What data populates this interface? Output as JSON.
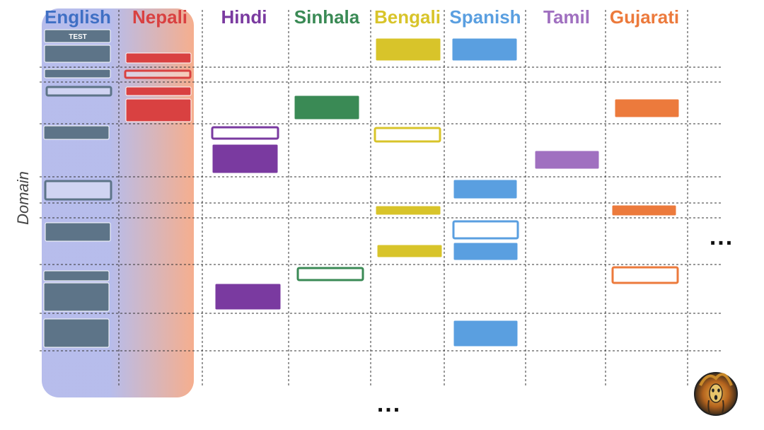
{
  "languages": [
    {
      "id": "english",
      "label": "English",
      "color": "#3f6fc4"
    },
    {
      "id": "nepali",
      "label": "Nepali",
      "color": "#d94141"
    },
    {
      "id": "hindi",
      "label": "Hindi",
      "color": "#7a3aa0"
    },
    {
      "id": "sinhala",
      "label": "Sinhala",
      "color": "#3a8a55"
    },
    {
      "id": "bengali",
      "label": "Bengali",
      "color": "#d8c42a"
    },
    {
      "id": "spanish",
      "label": "Spanish",
      "color": "#5a9fe0"
    },
    {
      "id": "tamil",
      "label": "Tamil",
      "color": "#a070c0"
    },
    {
      "id": "gujarati",
      "label": "Gujarati",
      "color": "#ec7a3c"
    }
  ],
  "axis": {
    "y_label": "Domain"
  },
  "test_label": "TEST",
  "more_columns": "...",
  "more_rows": "...",
  "avatar_icon": "scream-painting-avatar-icon",
  "colors": {
    "english_block": "#5d7488",
    "highlight_gradient_start": "#aab1e8",
    "highlight_gradient_end": "#f4a07a",
    "grid_line": "#333333"
  }
}
